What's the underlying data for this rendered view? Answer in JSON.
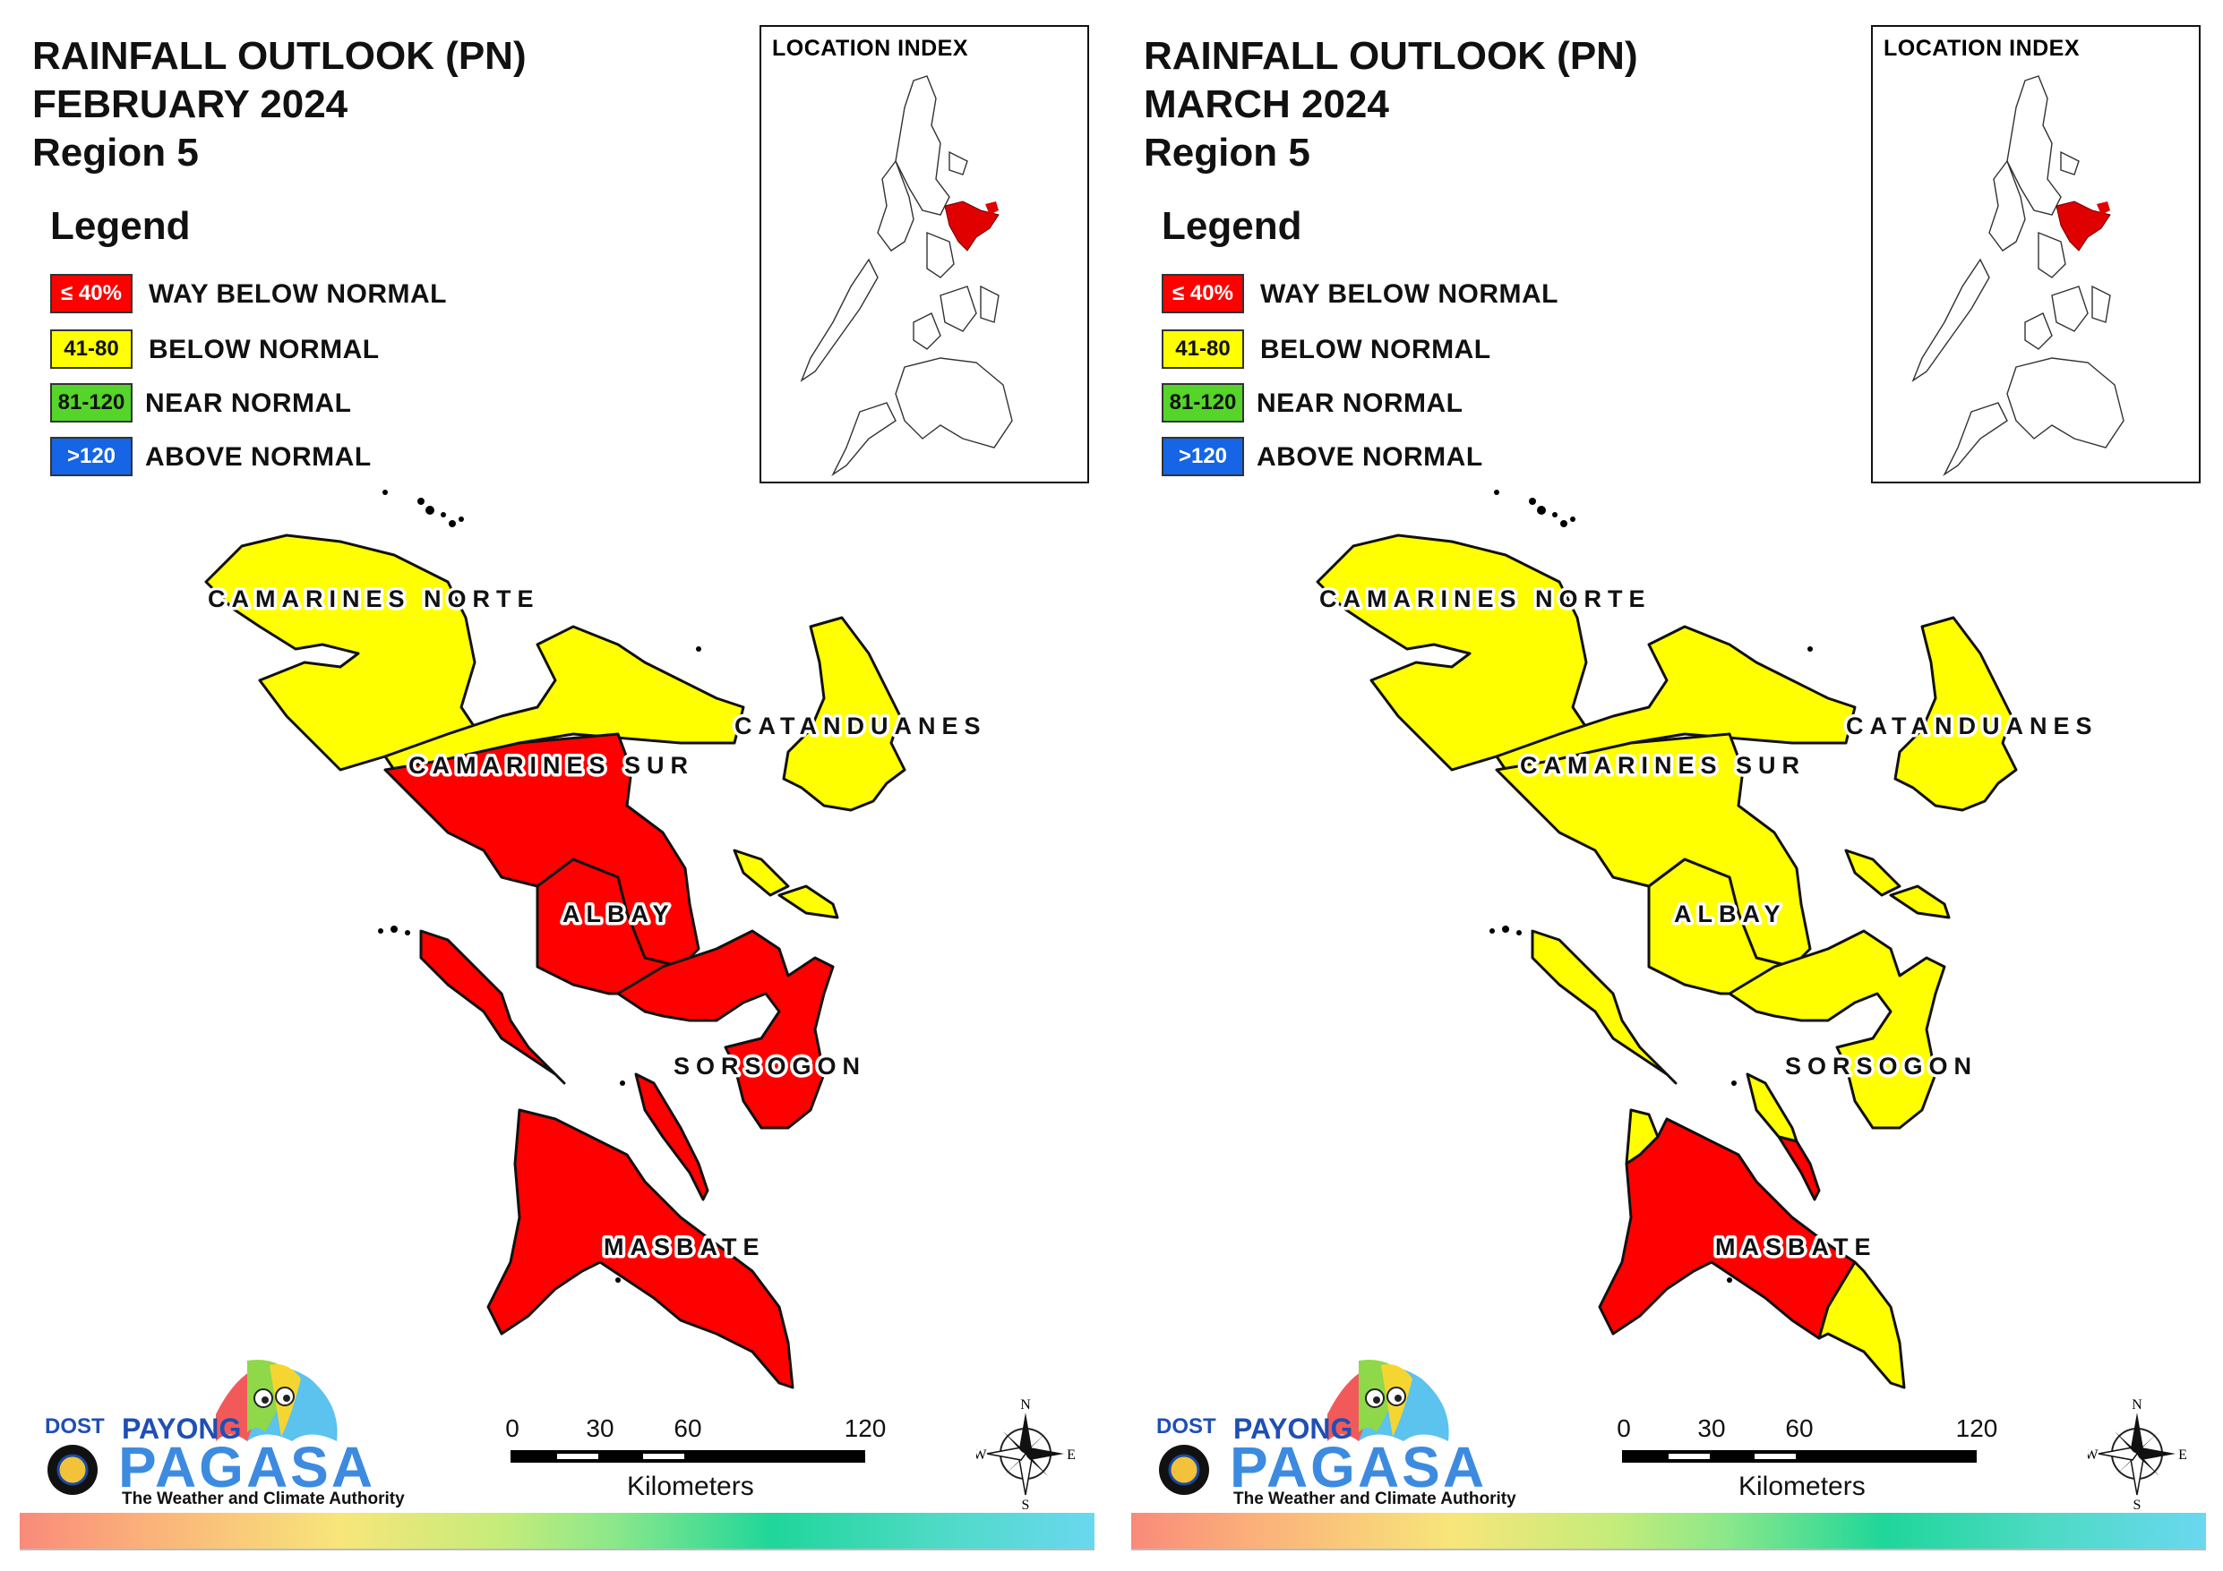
{
  "panels": [
    {
      "title_line1": "RAINFALL OUTLOOK (PN)",
      "title_line2": "FEBRUARY 2024",
      "title_line3": "Region 5",
      "provinces": {
        "camarines_norte": {
          "label": "CAMARINES NORTE",
          "category": "below"
        },
        "catanduanes": {
          "label": "CATANDUANES",
          "category": "below"
        },
        "camarines_sur": {
          "label": "CAMARINES SUR",
          "category": "mixed_way_below"
        },
        "albay": {
          "label": "ALBAY",
          "category": "way_below"
        },
        "sorsogon": {
          "label": "SORSOGON",
          "category": "way_below"
        },
        "masbate": {
          "label": "MASBATE",
          "category": "way_below"
        }
      }
    },
    {
      "title_line1": "RAINFALL OUTLOOK (PN)",
      "title_line2": "MARCH 2024",
      "title_line3": "Region 5",
      "provinces": {
        "camarines_norte": {
          "label": "CAMARINES NORTE",
          "category": "below"
        },
        "catanduanes": {
          "label": "CATANDUANES",
          "category": "below"
        },
        "camarines_sur": {
          "label": "CAMARINES SUR",
          "category": "below"
        },
        "albay": {
          "label": "ALBAY",
          "category": "below"
        },
        "sorsogon": {
          "label": "SORSOGON",
          "category": "below"
        },
        "masbate": {
          "label": "MASBATE",
          "category": "mixed_way_below"
        }
      }
    }
  ],
  "legend": {
    "title": "Legend",
    "items": [
      {
        "range": "≤ 40%",
        "label": "WAY BELOW NORMAL",
        "color": "#ff0000",
        "text_color": "#ffffff"
      },
      {
        "range": "41-80",
        "label": "BELOW NORMAL",
        "color": "#ffff00",
        "text_color": "#111111"
      },
      {
        "range": "81-120",
        "label": "NEAR NORMAL",
        "color": "#55d42a",
        "text_color": "#111111"
      },
      {
        "range": ">120",
        "label": "ABOVE NORMAL",
        "color": "#1565e6",
        "text_color": "#ffffff"
      }
    ]
  },
  "location_index": {
    "title": "LOCATION INDEX",
    "highlight_color": "#e00000"
  },
  "scale": {
    "ticks": [
      "0",
      "30",
      "60",
      "120"
    ],
    "unit": "Kilometers"
  },
  "compass": {
    "n": "N",
    "s": "S",
    "e": "E",
    "w": "W"
  },
  "logo": {
    "dost": "DOST",
    "payong": "PAYONG",
    "pagasa": "PAGASA",
    "tagline": "The Weather and Climate Authority"
  },
  "colors": {
    "way_below": "#ff0000",
    "below": "#ffff00",
    "near": "#55d42a",
    "above": "#1565e6"
  }
}
